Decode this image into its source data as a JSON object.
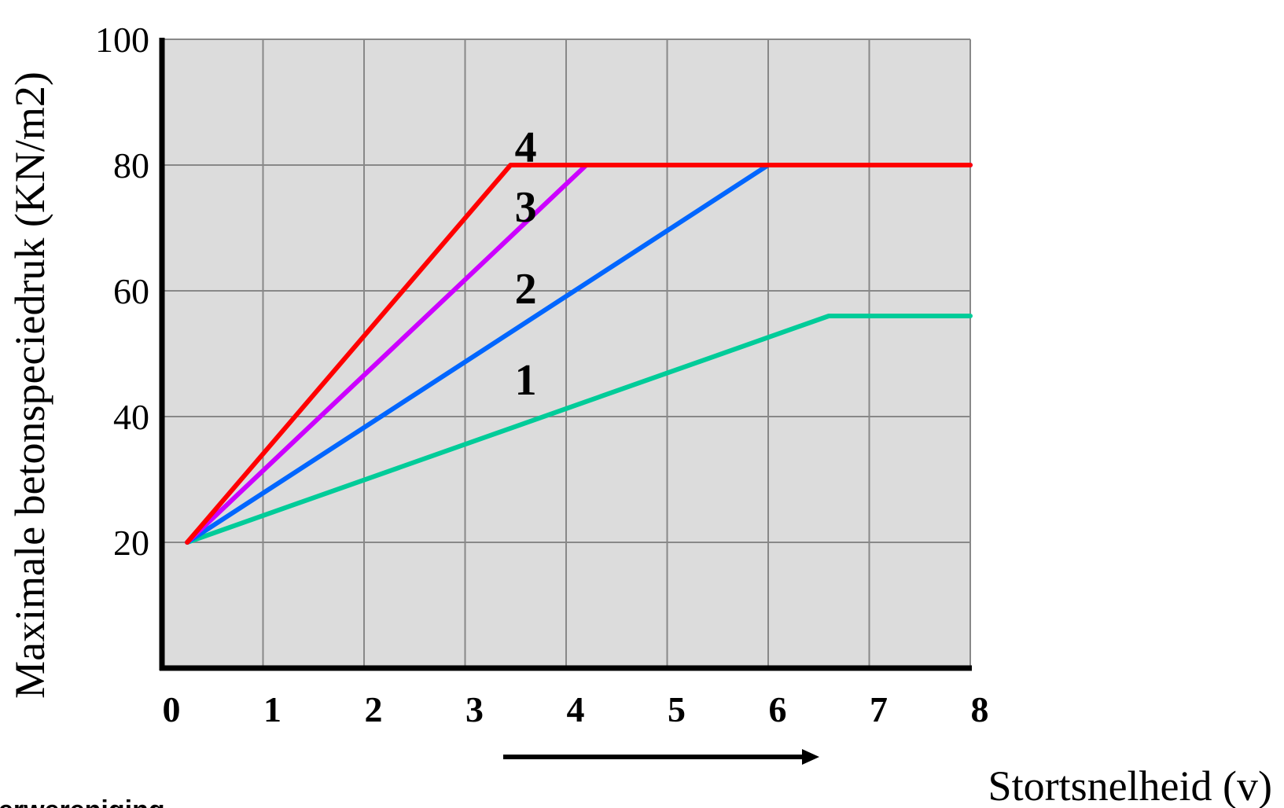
{
  "chart_data": {
    "type": "line",
    "title": "",
    "xlabel": "Stortsnelheid (v)",
    "ylabel": "Maximale betonspeciedruk (KN/m2)",
    "xlim": [
      0,
      8
    ],
    "ylim": [
      0,
      100
    ],
    "x_ticks": [
      "0",
      "1",
      "2",
      "3",
      "4",
      "5",
      "6",
      "7",
      "8"
    ],
    "y_ticks": [
      "20",
      "40",
      "60",
      "80",
      "100"
    ],
    "grid": true,
    "legend": "none",
    "series": [
      {
        "name": "1",
        "color": "#00cc99",
        "x": [
          0.25,
          6.6,
          8
        ],
        "y": [
          20,
          56,
          56
        ]
      },
      {
        "name": "2",
        "color": "#0066ff",
        "x": [
          0.25,
          6.0,
          8
        ],
        "y": [
          20,
          80,
          80
        ]
      },
      {
        "name": "3",
        "color": "#cc00ff",
        "x": [
          0.25,
          4.2,
          8
        ],
        "y": [
          20,
          80,
          80
        ]
      },
      {
        "name": "4",
        "color": "#ff0000",
        "x": [
          0.25,
          3.45,
          8
        ],
        "y": [
          20,
          80,
          80
        ]
      }
    ],
    "annotations": [
      "arrow-right"
    ]
  },
  "footer_text": "erwereniging"
}
